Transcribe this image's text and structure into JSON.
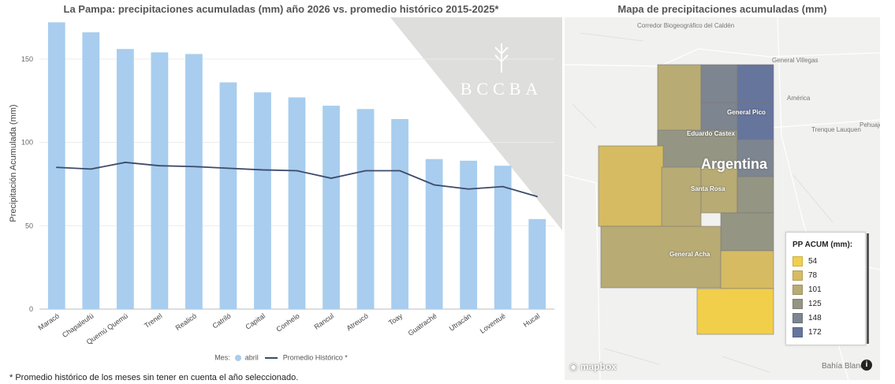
{
  "chart_title": "La Pampa: precipitaciones acumuladas (mm) año 2026 vs. promedio histórico 2015-2025*",
  "map_title": "Mapa de precipitaciones acumuladas (mm)",
  "watermark": "BCCBA",
  "footnote": "* Promedio histórico de los meses sin tener en cuenta el año seleccionado.",
  "chart_data": {
    "type": "bar",
    "title": "La Pampa: precipitaciones acumuladas (mm) año 2026 vs. promedio histórico 2015-2025*",
    "xlabel": "",
    "ylabel": "Precipitación Acumulada (mm)",
    "ylim": [
      0,
      175
    ],
    "yticks": [
      0,
      50,
      100,
      150
    ],
    "grid": true,
    "legend_position": "bottom",
    "legend_label": "Mes:",
    "categories": [
      "Maracó",
      "Chapaleufú",
      "Quemú Quemú",
      "Trenel",
      "Realicó",
      "Catriló",
      "Capital",
      "Conhelo",
      "Rancul",
      "Atreucó",
      "Toay",
      "Guatraché",
      "Utracán",
      "Loventué",
      "Hucal"
    ],
    "series": [
      {
        "name": "abril",
        "type": "bar",
        "color": "#a8cdee",
        "values": [
          172,
          166,
          156,
          154,
          153,
          136,
          130,
          127,
          122,
          120,
          114,
          90,
          89,
          86,
          54
        ]
      },
      {
        "name": "Promedio Histórico *",
        "type": "line",
        "color": "#3d4a6b",
        "values": [
          85,
          84,
          88,
          86,
          85.5,
          84.5,
          83.5,
          83,
          78.5,
          83,
          83,
          74.5,
          72,
          73.5,
          67.5
        ]
      }
    ]
  },
  "map": {
    "legend_title": "PP ACUM (mm):",
    "legend_items": [
      {
        "label": "54",
        "color": "#f2cf4b"
      },
      {
        "label": "78",
        "color": "#d6bb62"
      },
      {
        "label": "101",
        "color": "#b8ab74"
      },
      {
        "label": "125",
        "color": "#949583"
      },
      {
        "label": "148",
        "color": "#7d8590"
      },
      {
        "label": "172",
        "color": "#66759c"
      }
    ],
    "country_label": "Argentina",
    "cities": [
      "General Pico",
      "Eduardo Castex",
      "Santa Rosa",
      "General Acha"
    ],
    "places": [
      "Corredor Biogeográfico del Caldén",
      "General Villegas",
      "América",
      "Pehuajó",
      "Trenque Lauquen",
      "Bahía Blanca"
    ],
    "attribution": "mapbox",
    "info_icon": "info-icon"
  }
}
